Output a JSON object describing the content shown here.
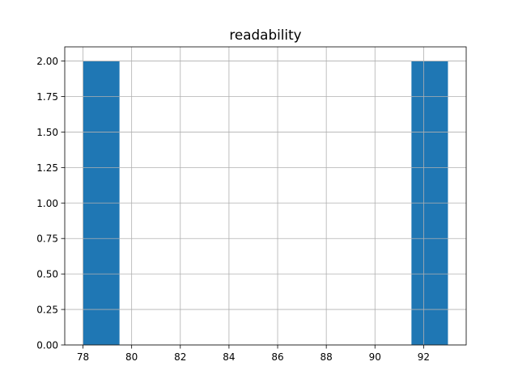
{
  "chart_data": {
    "type": "bar",
    "title": "readability",
    "xlabel": "",
    "ylabel": "",
    "bins": [
      {
        "start": 78.0,
        "end": 79.5,
        "count": 2
      },
      {
        "start": 79.5,
        "end": 81.0,
        "count": 0
      },
      {
        "start": 81.0,
        "end": 82.5,
        "count": 0
      },
      {
        "start": 82.5,
        "end": 84.0,
        "count": 0
      },
      {
        "start": 84.0,
        "end": 85.5,
        "count": 0
      },
      {
        "start": 85.5,
        "end": 87.0,
        "count": 0
      },
      {
        "start": 87.0,
        "end": 88.5,
        "count": 0
      },
      {
        "start": 88.5,
        "end": 90.0,
        "count": 0
      },
      {
        "start": 90.0,
        "end": 91.5,
        "count": 0
      },
      {
        "start": 91.5,
        "end": 93.0,
        "count": 2
      }
    ],
    "xlim": [
      77.25,
      93.75
    ],
    "ylim": [
      0,
      2.1
    ],
    "xticks": [
      78,
      80,
      82,
      84,
      86,
      88,
      90,
      92
    ],
    "xtick_labels": [
      "78",
      "80",
      "82",
      "84",
      "86",
      "88",
      "90",
      "92"
    ],
    "yticks": [
      0,
      0.25,
      0.5,
      0.75,
      1.0,
      1.25,
      1.5,
      1.75,
      2.0
    ],
    "ytick_labels": [
      "0.00",
      "0.25",
      "0.50",
      "0.75",
      "1.00",
      "1.25",
      "1.50",
      "1.75",
      "2.00"
    ],
    "grid": true,
    "bar_color": "#1f77b4",
    "grid_color": "#b0b0b0"
  }
}
